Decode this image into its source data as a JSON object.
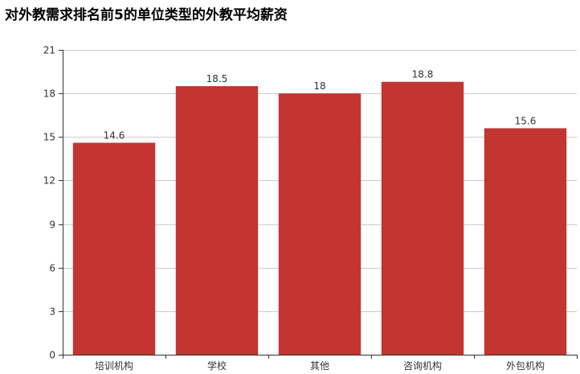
{
  "chart_data": {
    "type": "bar",
    "title": "对外教需求排名前5的单位类型的外教平均薪资",
    "xlabel": "",
    "ylabel": "",
    "categories": [
      "培训机构",
      "学校",
      "其他",
      "咨询机构",
      "外包机构"
    ],
    "values": [
      14.6,
      18.5,
      18,
      18.8,
      15.6
    ],
    "value_labels": [
      "14.6",
      "18.5",
      "18",
      "18.8",
      "15.6"
    ],
    "ylim": [
      0,
      21
    ],
    "yticks": [
      "0",
      "3",
      "6",
      "9",
      "12",
      "15",
      "18",
      "21"
    ],
    "bar_color": "#c23531",
    "grid": true,
    "legend": "none"
  }
}
